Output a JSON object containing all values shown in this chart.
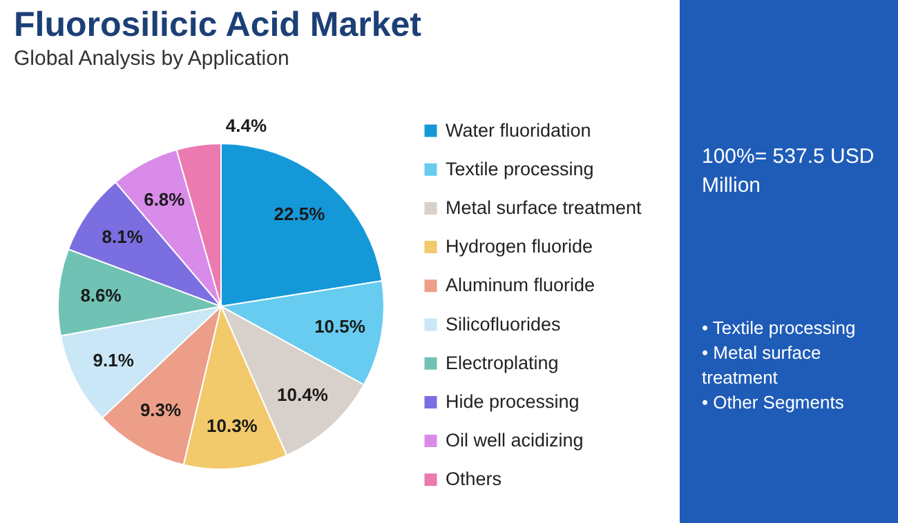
{
  "chart_data": {
    "type": "pie",
    "title": "Fluorosilicic Acid Market",
    "subtitle": "Global Analysis by Application",
    "categories": [
      "Water fluoridation",
      "Textile processing",
      "Metal surface treatment",
      "Hydrogen fluoride",
      "Aluminum fluoride",
      "Silicofluorides",
      "Electroplating",
      "Hide processing",
      "Oil well acidizing",
      "Others"
    ],
    "values": [
      22.5,
      10.5,
      10.4,
      10.3,
      9.3,
      9.1,
      8.6,
      8.1,
      6.8,
      4.4
    ],
    "value_labels": [
      "22.5%",
      "10.5%",
      "10.4%",
      "10.3%",
      "9.3%",
      "9.1%",
      "8.6%",
      "8.1%",
      "6.8%",
      "4.4%"
    ],
    "colors": [
      "#1598d8",
      "#67ccf0",
      "#d8d0ca",
      "#f2c96b",
      "#ec9e88",
      "#c9e7f6",
      "#6fc2b4",
      "#7b6ee0",
      "#d98be9",
      "#ea7aaf"
    ],
    "legend": "right",
    "annotations": [
      "100%= 537.5 USD Million",
      "• Textile processing",
      "• Metal surface treatment",
      "• Other Segments"
    ]
  }
}
